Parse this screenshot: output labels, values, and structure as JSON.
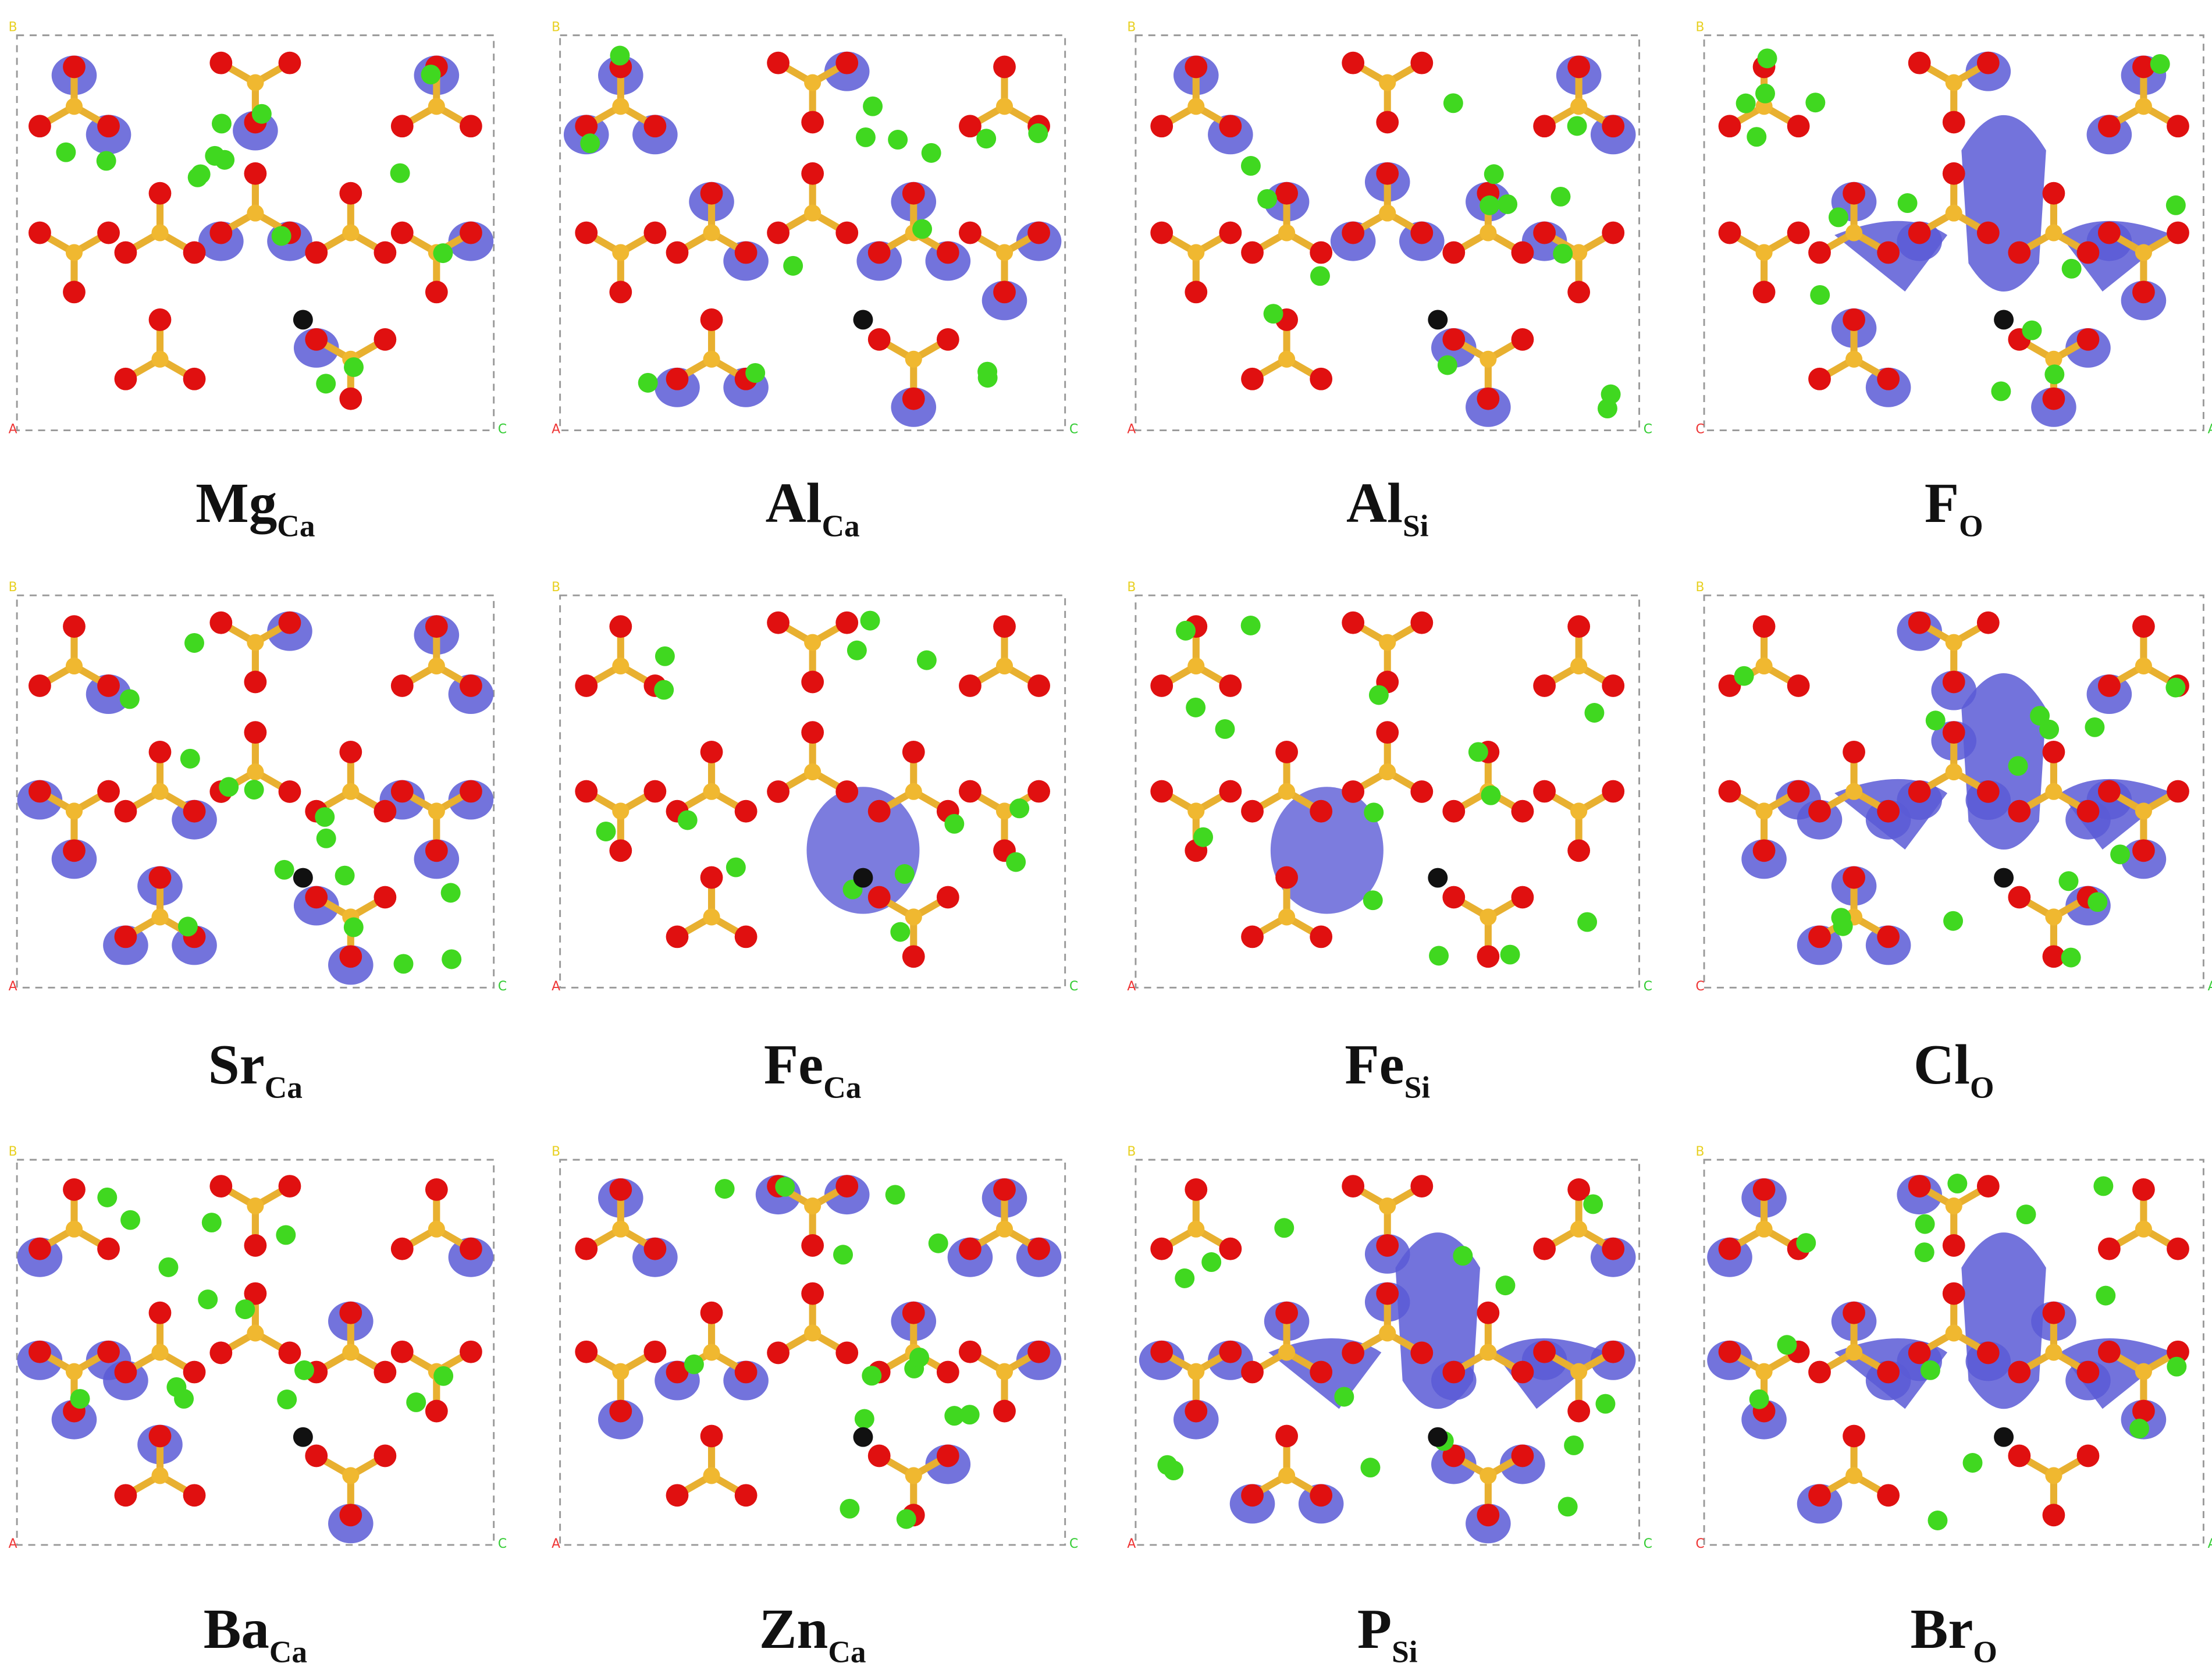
{
  "panels": [
    {
      "label": "Mg",
      "subscript": "Ca",
      "corner_labels": [
        "B",
        "A",
        "C"
      ]
    },
    {
      "label": "Al",
      "subscript": "Ca",
      "corner_labels": [
        "B",
        "A",
        "C"
      ]
    },
    {
      "label": "Al",
      "subscript": "Si",
      "corner_labels": [
        "B",
        "A",
        "C"
      ]
    },
    {
      "label": "F",
      "subscript": "O",
      "corner_labels": [
        "B",
        "C",
        "A"
      ]
    },
    {
      "label": "Sr",
      "subscript": "Ca",
      "corner_labels": [
        "B",
        "A",
        "C"
      ]
    },
    {
      "label": "Fe",
      "subscript": "Ca",
      "corner_labels": [
        "B",
        "A",
        "C"
      ]
    },
    {
      "label": "Fe",
      "subscript": "Si",
      "corner_labels": [
        "B",
        "A",
        "C"
      ]
    },
    {
      "label": "Cl",
      "subscript": "O",
      "corner_labels": [
        "B",
        "C",
        "A"
      ]
    },
    {
      "label": "Ba",
      "subscript": "Ca",
      "corner_labels": [
        "B",
        "A",
        "C"
      ]
    },
    {
      "label": "Zn",
      "subscript": "Ca",
      "corner_labels": [
        "B",
        "A",
        "C"
      ]
    },
    {
      "label": "P",
      "subscript": "Si",
      "corner_labels": [
        "B",
        "A",
        "C"
      ]
    },
    {
      "label": "Br",
      "subscript": "O",
      "corner_labels": [
        "B",
        "C",
        "A"
      ]
    }
  ]
}
